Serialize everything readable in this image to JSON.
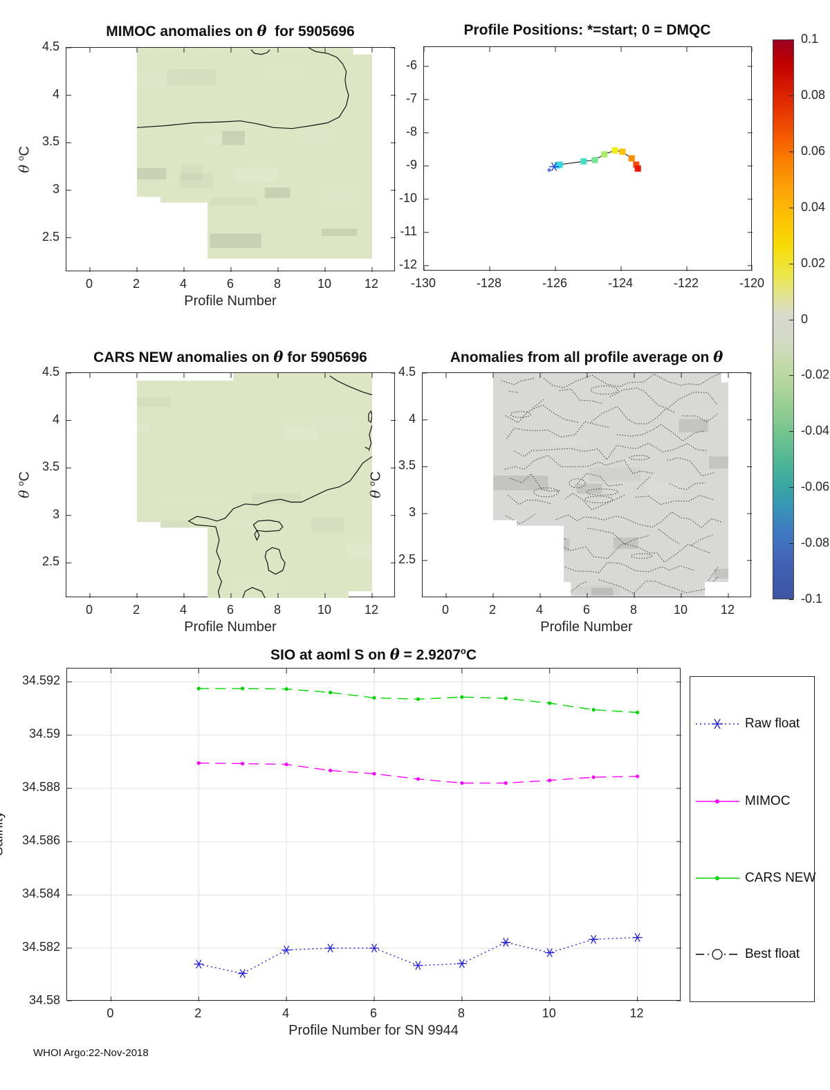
{
  "figure": {
    "footer": "WHOI Argo:22-Nov-2018",
    "background": "#ffffff"
  },
  "colorbar": {
    "lim": [
      -0.1,
      0.1
    ],
    "tick_values": [
      0.1,
      0.08,
      0.06,
      0.04,
      0.02,
      0,
      -0.02,
      -0.04,
      -0.06,
      -0.08,
      -0.1
    ],
    "tick_labels": [
      "0.1",
      "0.08",
      "0.06",
      "0.04",
      "0.02",
      "0",
      "-0.02",
      "-0.04",
      "-0.06",
      "-0.08",
      "-0.1"
    ],
    "gradient_stops": [
      [
        "#9a0020",
        0
      ],
      [
        "#c00000",
        4
      ],
      [
        "#d41800",
        8
      ],
      [
        "#e83800",
        13
      ],
      [
        "#f66000",
        18
      ],
      [
        "#fb8200",
        22
      ],
      [
        "#fda408",
        27
      ],
      [
        "#fdc304",
        32
      ],
      [
        "#f6dc08",
        37
      ],
      [
        "#ece64a",
        42
      ],
      [
        "#e1e295",
        46
      ],
      [
        "#dadcc0",
        48.5
      ],
      [
        "#d6d8d0",
        50
      ],
      [
        "#d5d8cb",
        52
      ],
      [
        "#d0dbbd",
        55
      ],
      [
        "#c4daaa",
        58
      ],
      [
        "#b0d59c",
        62
      ],
      [
        "#94cd93",
        66
      ],
      [
        "#73c390",
        70.5
      ],
      [
        "#52b795",
        75
      ],
      [
        "#3aa8a2",
        79.5
      ],
      [
        "#3795b5",
        83.5
      ],
      [
        "#3f7ac2",
        88
      ],
      [
        "#4264b6",
        93
      ],
      [
        "#3d53a3",
        100
      ]
    ]
  },
  "chart_data": [
    {
      "type": "contour",
      "title_pre": "MIMOC anomalies on ",
      "theta": "θ",
      "title_post": "  for 5905696",
      "xlabel": "Profile Number",
      "ylabel_theta": "θ",
      "ylabel_sup": "o",
      "ylabel_unit": "C",
      "xlim": [
        -1,
        13
      ],
      "ylim": [
        2.14,
        4.5
      ],
      "xtick_values": [
        0,
        2,
        4,
        6,
        8,
        10,
        12
      ],
      "xtick_labels": [
        "0",
        "2",
        "4",
        "6",
        "8",
        "10",
        "12"
      ],
      "ytick_values": [
        4.5,
        4,
        3.5,
        3,
        2.5
      ],
      "ytick_labels": [
        "4.5",
        "4",
        "3.5",
        "3",
        "2.5"
      ],
      "fill_color": "#dce6c5",
      "region": [
        [
          2,
          4.5
        ],
        [
          11.2,
          4.5
        ],
        [
          11.2,
          4.43
        ],
        [
          12,
          4.43
        ],
        [
          12,
          2.28
        ],
        [
          5,
          2.28
        ],
        [
          5,
          2.87
        ],
        [
          3,
          2.87
        ],
        [
          3,
          2.93
        ],
        [
          2,
          2.93
        ]
      ],
      "contours": [
        [
          [
            2,
            3.66
          ],
          [
            3.2,
            3.68
          ],
          [
            4.4,
            3.71
          ],
          [
            5.6,
            3.72
          ],
          [
            6.4,
            3.73
          ],
          [
            7.1,
            3.7
          ],
          [
            7.8,
            3.66
          ],
          [
            8.6,
            3.65
          ],
          [
            9.4,
            3.68
          ],
          [
            10.1,
            3.71
          ],
          [
            10.6,
            3.77
          ],
          [
            10.9,
            3.89
          ],
          [
            11.0,
            4.0
          ],
          [
            10.9,
            4.08
          ],
          [
            10.85,
            4.16
          ],
          [
            10.9,
            4.25
          ],
          [
            10.75,
            4.33
          ],
          [
            10.5,
            4.4
          ],
          [
            10.1,
            4.44
          ],
          [
            9.6,
            4.46
          ],
          [
            9.3,
            4.5
          ]
        ],
        [
          [
            6.85,
            4.48
          ],
          [
            7.0,
            4.44
          ],
          [
            7.3,
            4.43
          ],
          [
            7.55,
            4.45
          ],
          [
            7.65,
            4.48
          ]
        ]
      ],
      "contour_style": "solid",
      "mottle_seed": 11
    },
    {
      "type": "scatter",
      "title": "Profile Positions: *=start; 0 = DMQC",
      "xlim": [
        -130,
        -120
      ],
      "ylim": [
        -12.17,
        -5.42
      ],
      "xtick_values": [
        -130,
        -128,
        -126,
        -124,
        -122,
        -120
      ],
      "xtick_labels": [
        "-130",
        "-128",
        "-126",
        "-124",
        "-122",
        "-120"
      ],
      "ytick_values": [
        -6,
        -7,
        -8,
        -9,
        -10,
        -11,
        -12
      ],
      "ytick_labels": [
        "-6",
        "-7",
        "-8",
        "-9",
        "-10",
        "-11",
        "-12"
      ],
      "trajectory": {
        "line_color": "#000000",
        "start": {
          "x": -126.04,
          "y": -9.02,
          "marker": "*",
          "color": "#2244dd"
        },
        "points": [
          {
            "x": -125.93,
            "y": -8.98,
            "color": "#30c8f8"
          },
          {
            "x": -125.87,
            "y": -8.96,
            "color": "#38d8e0"
          },
          {
            "x": -125.14,
            "y": -8.86,
            "color": "#42dfc0"
          },
          {
            "x": -124.8,
            "y": -8.82,
            "color": "#74e696"
          },
          {
            "x": -124.51,
            "y": -8.65,
            "color": "#a6ec66"
          },
          {
            "x": -124.19,
            "y": -8.53,
            "color": "#eeee10"
          },
          {
            "x": -123.96,
            "y": -8.57,
            "color": "#fdc200"
          },
          {
            "x": -123.68,
            "y": -8.77,
            "color": "#fc8c00"
          },
          {
            "x": -123.54,
            "y": -8.96,
            "color": "#f54a0a"
          },
          {
            "x": -123.49,
            "y": -9.08,
            "color": "#ec1804"
          }
        ]
      }
    },
    {
      "type": "contour",
      "title_pre": "CARS NEW anomalies on ",
      "theta": "θ",
      "title_post": " for 5905696",
      "xlabel": "Profile Number",
      "ylabel_theta": "θ",
      "ylabel_sup": "o",
      "ylabel_unit": "C",
      "xlim": [
        -1,
        13
      ],
      "ylim": [
        2.13,
        4.5
      ],
      "xtick_values": [
        0,
        2,
        4,
        6,
        8,
        10,
        12
      ],
      "xtick_labels": [
        "0",
        "2",
        "4",
        "6",
        "8",
        "10",
        "12"
      ],
      "ytick_values": [
        4.5,
        4,
        3.5,
        3,
        2.5
      ],
      "ytick_labels": [
        "4.5",
        "4",
        "3.5",
        "3",
        "2.5"
      ],
      "fill_color": "#dce6c5",
      "region": [
        [
          2,
          4.42
        ],
        [
          6.1,
          4.42
        ],
        [
          6.1,
          4.5
        ],
        [
          12,
          4.5
        ],
        [
          12,
          2.2
        ],
        [
          11,
          2.2
        ],
        [
          11,
          2.13
        ],
        [
          5,
          2.13
        ],
        [
          5,
          2.87
        ],
        [
          3,
          2.87
        ],
        [
          3,
          2.93
        ],
        [
          2,
          2.93
        ]
      ],
      "contours": [
        [
          [
            10.2,
            4.47
          ],
          [
            10.5,
            4.42
          ],
          [
            11.0,
            4.36
          ],
          [
            11.6,
            4.3
          ],
          [
            12,
            4.27
          ]
        ],
        [
          [
            11.85,
            4.07
          ],
          [
            11.95,
            4.1
          ],
          [
            12,
            4.05
          ],
          [
            11.95,
            3.98
          ],
          [
            11.85,
            4.0
          ],
          [
            11.85,
            4.07
          ]
        ],
        [
          [
            12,
            3.95
          ],
          [
            11.88,
            3.85
          ],
          [
            11.96,
            3.76
          ],
          [
            11.86,
            3.68
          ]
        ],
        [
          [
            11.7,
            3.72
          ],
          [
            11.85,
            3.7
          ]
        ],
        [
          [
            12,
            3.62
          ],
          [
            11.6,
            3.55
          ],
          [
            11.35,
            3.46
          ],
          [
            11.05,
            3.36
          ],
          [
            10.6,
            3.3
          ],
          [
            10.1,
            3.27
          ],
          [
            9.5,
            3.2
          ],
          [
            9.0,
            3.14
          ],
          [
            8.55,
            3.14
          ],
          [
            8.1,
            3.17
          ],
          [
            7.6,
            3.15
          ],
          [
            7.1,
            3.11
          ],
          [
            6.6,
            3.12
          ],
          [
            6.1,
            3.07
          ],
          [
            5.75,
            2.97
          ],
          [
            5.4,
            2.94
          ],
          [
            5.0,
            2.97
          ],
          [
            4.55,
            2.99
          ],
          [
            4.2,
            2.94
          ],
          [
            4.5,
            2.9
          ],
          [
            5.0,
            2.89
          ],
          [
            5.35,
            2.88
          ],
          [
            5.5,
            2.74
          ],
          [
            5.38,
            2.62
          ],
          [
            5.55,
            2.52
          ],
          [
            5.42,
            2.4
          ],
          [
            5.6,
            2.3
          ],
          [
            5.46,
            2.2
          ],
          [
            5.52,
            2.13
          ]
        ],
        [
          [
            4.65,
            2.86
          ],
          [
            4.95,
            2.84
          ]
        ],
        [
          [
            6.95,
            2.9
          ],
          [
            7.15,
            2.94
          ],
          [
            7.6,
            2.95
          ],
          [
            8.05,
            2.93
          ],
          [
            8.2,
            2.88
          ],
          [
            8.05,
            2.84
          ],
          [
            7.5,
            2.83
          ],
          [
            7.1,
            2.84
          ],
          [
            6.95,
            2.9
          ]
        ],
        [
          [
            7.0,
            2.8
          ],
          [
            7.1,
            2.84
          ],
          [
            7.2,
            2.79
          ],
          [
            7.1,
            2.74
          ],
          [
            7.0,
            2.8
          ]
        ],
        [
          [
            7.5,
            2.62
          ],
          [
            7.75,
            2.66
          ],
          [
            8.05,
            2.64
          ],
          [
            8.15,
            2.55
          ],
          [
            8.3,
            2.5
          ],
          [
            8.2,
            2.42
          ],
          [
            7.9,
            2.38
          ],
          [
            7.6,
            2.42
          ],
          [
            7.55,
            2.5
          ],
          [
            7.45,
            2.56
          ],
          [
            7.5,
            2.62
          ]
        ],
        [
          [
            6.5,
            2.13
          ],
          [
            6.6,
            2.2
          ],
          [
            6.9,
            2.24
          ],
          [
            7.3,
            2.2
          ],
          [
            7.45,
            2.13
          ]
        ]
      ],
      "contour_style": "solid",
      "mottle_seed": 23
    },
    {
      "type": "contour",
      "title_pre": "Anomalies from all profile average on ",
      "theta": "θ",
      "title_post": "",
      "xlabel": "Profile Number",
      "ylabel_theta": "θ",
      "ylabel_sup": "o",
      "ylabel_unit": "C",
      "xlim": [
        -1,
        13
      ],
      "ylim": [
        2.1,
        4.5
      ],
      "xtick_values": [
        0,
        2,
        4,
        6,
        8,
        10,
        12
      ],
      "xtick_labels": [
        "0",
        "2",
        "4",
        "6",
        "8",
        "10",
        "12"
      ],
      "ytick_values": [
        4.5,
        4,
        3.5,
        3,
        2.5
      ],
      "ytick_labels": [
        "4.5",
        "4",
        "3.5",
        "3",
        "2.5"
      ],
      "fill_color": "#d8d8d6",
      "region": [
        [
          2,
          4.5
        ],
        [
          11.7,
          4.5
        ],
        [
          11.7,
          4.4
        ],
        [
          12,
          4.4
        ],
        [
          12,
          2.27
        ],
        [
          11,
          2.27
        ],
        [
          11,
          2.12
        ],
        [
          5.3,
          2.12
        ],
        [
          5.3,
          2.27
        ],
        [
          5,
          2.27
        ],
        [
          5,
          2.87
        ],
        [
          3,
          2.87
        ],
        [
          3,
          2.93
        ],
        [
          2,
          2.93
        ]
      ],
      "contours": [],
      "contour_style": "dotted",
      "dotted_bands": 13,
      "dotted_loops": 8,
      "mottle_seed": 37
    },
    {
      "type": "line",
      "title_pre": "SIO at aoml S on ",
      "theta": "θ",
      "title_mid": " = 2.9207",
      "title_sup": "o",
      "title_end": "C",
      "xlabel": "Profile Number for SN 9944",
      "ylabel": "Salinity",
      "xlim": [
        -1,
        13
      ],
      "ylim": [
        34.58,
        34.5925
      ],
      "xtick_values": [
        0,
        2,
        4,
        6,
        8,
        10,
        12
      ],
      "xtick_labels": [
        "0",
        "2",
        "4",
        "6",
        "8",
        "10",
        "12"
      ],
      "ytick_values": [
        34.58,
        34.582,
        34.584,
        34.586,
        34.588,
        34.59,
        34.592
      ],
      "ytick_labels": [
        "34.58",
        "34.582",
        "34.584",
        "34.586",
        "34.588",
        "34.59",
        "34.592"
      ],
      "grid": true,
      "x": [
        2,
        3,
        4,
        5,
        6,
        7,
        8,
        9,
        10,
        11,
        12
      ],
      "series": [
        {
          "name": "Raw float",
          "color": "#2020dd",
          "line": "dotted",
          "marker": "asterisk",
          "values": [
            34.5814,
            34.58105,
            34.58193,
            34.582,
            34.582,
            34.58135,
            34.58142,
            34.58222,
            34.58183,
            34.58233,
            34.5824
          ]
        },
        {
          "name": "MIMOC",
          "color": "#ff00ff",
          "line": "dashed",
          "marker": "dot",
          "values": [
            34.58895,
            34.58893,
            34.5889,
            34.58867,
            34.58855,
            34.58835,
            34.5882,
            34.5882,
            34.5883,
            34.58842,
            34.58845
          ]
        },
        {
          "name": "CARS NEW",
          "color": "#00d500",
          "line": "dashed",
          "marker": "dot",
          "values": [
            34.59175,
            34.59175,
            34.59173,
            34.5916,
            34.5914,
            34.59135,
            34.59143,
            34.59138,
            34.5912,
            34.59095,
            34.59085
          ]
        },
        {
          "name": "Best float",
          "color": "#000000",
          "line": "dashdot",
          "marker": "circle",
          "values": []
        }
      ],
      "legend": [
        "Raw float",
        "MIMOC",
        "CARS NEW",
        "Best float"
      ]
    }
  ]
}
